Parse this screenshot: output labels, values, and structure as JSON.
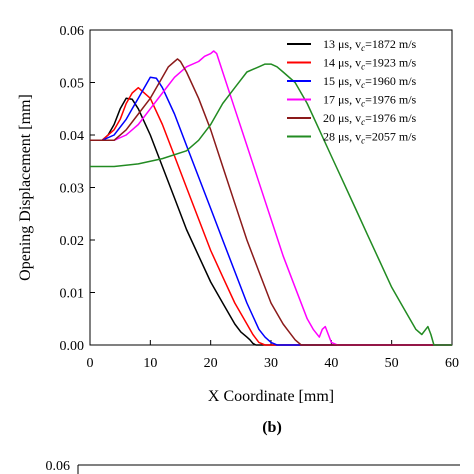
{
  "chart_data": [
    {
      "type": "line",
      "panel_label": "(b)",
      "xlabel": "X Coordinate [mm]",
      "ylabel": "Opening Displacement [mm]",
      "xlim": [
        0,
        60
      ],
      "ylim": [
        0,
        0.06
      ],
      "x_ticks": [
        "0",
        "10",
        "20",
        "30",
        "40",
        "50",
        "60"
      ],
      "y_ticks": [
        "0.00",
        "0.01",
        "0.02",
        "0.03",
        "0.04",
        "0.05",
        "0.06"
      ],
      "grid": false,
      "legend_position": "top-right",
      "series": [
        {
          "name": "13 μs, v",
          "sub": "c",
          "suffix": "=1872 m/s",
          "color": "#000000",
          "x": [
            0,
            2,
            3,
            4,
            5,
            6,
            7,
            8,
            10,
            12,
            14,
            16,
            18,
            20,
            22,
            24,
            25,
            26,
            26.5,
            27,
            27.5,
            28,
            60
          ],
          "y": [
            0.039,
            0.039,
            0.04,
            0.042,
            0.045,
            0.047,
            0.0468,
            0.045,
            0.04,
            0.034,
            0.028,
            0.022,
            0.017,
            0.012,
            0.008,
            0.004,
            0.0025,
            0.0015,
            0.001,
            0.0003,
            0,
            0,
            0
          ]
        },
        {
          "name": "14 μs, v",
          "sub": "c",
          "suffix": "=1923 m/s",
          "color": "#ff0000",
          "x": [
            0,
            2,
            4,
            5,
            6,
            7,
            8,
            10,
            12,
            14,
            16,
            18,
            20,
            22,
            24,
            26,
            27,
            28,
            29,
            60
          ],
          "y": [
            0.039,
            0.039,
            0.041,
            0.043,
            0.046,
            0.048,
            0.049,
            0.047,
            0.042,
            0.036,
            0.03,
            0.024,
            0.018,
            0.013,
            0.008,
            0.004,
            0.002,
            0.0005,
            0,
            0
          ]
        },
        {
          "name": "15 μs, v",
          "sub": "c",
          "suffix": "=1960 m/s",
          "color": "#0000ff",
          "x": [
            0,
            2,
            4,
            6,
            7,
            8,
            9,
            10,
            11,
            12,
            14,
            16,
            18,
            20,
            22,
            24,
            26,
            28,
            29,
            30,
            31,
            60
          ],
          "y": [
            0.039,
            0.039,
            0.04,
            0.043,
            0.045,
            0.047,
            0.049,
            0.051,
            0.0508,
            0.049,
            0.044,
            0.038,
            0.032,
            0.026,
            0.02,
            0.014,
            0.008,
            0.003,
            0.0015,
            0.0005,
            0,
            0
          ]
        },
        {
          "name": "17 μs, v",
          "sub": "c",
          "suffix": "=1976 m/s",
          "color": "#ff00ff",
          "x": [
            0,
            2,
            4,
            6,
            8,
            10,
            12,
            14,
            16,
            18,
            19,
            20,
            20.5,
            21,
            22,
            24,
            26,
            28,
            30,
            32,
            34,
            36,
            37,
            38,
            38.5,
            39,
            39.5,
            40,
            41,
            60
          ],
          "y": [
            0.039,
            0.039,
            0.039,
            0.04,
            0.042,
            0.045,
            0.048,
            0.051,
            0.053,
            0.054,
            0.055,
            0.0555,
            0.056,
            0.0555,
            0.052,
            0.045,
            0.038,
            0.031,
            0.024,
            0.017,
            0.011,
            0.005,
            0.003,
            0.0015,
            0.003,
            0.0035,
            0.002,
            0.0005,
            0,
            0
          ]
        },
        {
          "name": "20 μs, v",
          "sub": "c",
          "suffix": "=1976 m/s",
          "color": "#8b1a1a",
          "x": [
            0,
            2,
            4,
            6,
            8,
            10,
            12,
            13,
            14,
            14.5,
            15,
            16,
            18,
            20,
            22,
            24,
            26,
            28,
            30,
            32,
            33,
            34,
            35,
            60
          ],
          "y": [
            0.039,
            0.039,
            0.039,
            0.041,
            0.044,
            0.047,
            0.051,
            0.053,
            0.054,
            0.0545,
            0.054,
            0.052,
            0.047,
            0.041,
            0.034,
            0.027,
            0.02,
            0.014,
            0.008,
            0.004,
            0.0025,
            0.001,
            0,
            0
          ]
        },
        {
          "name": "28 μs, v",
          "sub": "c",
          "suffix": "=2057 m/s",
          "color": "#228b22",
          "x": [
            0,
            4,
            8,
            12,
            16,
            18,
            20,
            22,
            24,
            26,
            28,
            29,
            30,
            31,
            32,
            34,
            36,
            38,
            40,
            42,
            44,
            46,
            48,
            50,
            52,
            54,
            55,
            56,
            56.5,
            57,
            60
          ],
          "y": [
            0.034,
            0.034,
            0.0345,
            0.0355,
            0.037,
            0.039,
            0.042,
            0.046,
            0.049,
            0.052,
            0.053,
            0.0535,
            0.0535,
            0.053,
            0.052,
            0.05,
            0.046,
            0.041,
            0.036,
            0.031,
            0.026,
            0.021,
            0.016,
            0.011,
            0.007,
            0.003,
            0.002,
            0.0035,
            0.002,
            0,
            0
          ]
        }
      ]
    },
    {
      "type": "line",
      "partial": true,
      "y_ticks": [
        "0.06"
      ]
    }
  ]
}
